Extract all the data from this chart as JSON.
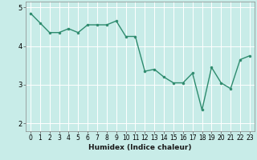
{
  "title": "",
  "xlabel": "Humidex (Indice chaleur)",
  "x_values": [
    0,
    1,
    2,
    3,
    4,
    5,
    6,
    7,
    8,
    9,
    10,
    11,
    12,
    13,
    14,
    15,
    16,
    17,
    18,
    19,
    20,
    21,
    22,
    23
  ],
  "y_values": [
    4.85,
    4.6,
    4.35,
    4.35,
    4.45,
    4.35,
    4.55,
    4.55,
    4.55,
    4.65,
    4.25,
    4.25,
    3.35,
    3.4,
    3.2,
    3.05,
    3.05,
    3.3,
    2.35,
    3.45,
    3.05,
    2.9,
    3.65,
    3.75
  ],
  "line_color": "#2e8b6e",
  "marker_color": "#2e8b6e",
  "bg_color": "#c8ece8",
  "grid_color": "#ffffff",
  "ylim": [
    1.8,
    5.15
  ],
  "xlim": [
    -0.5,
    23.5
  ],
  "yticks": [
    2,
    3,
    4,
    5
  ],
  "xticks": [
    0,
    1,
    2,
    3,
    4,
    5,
    6,
    7,
    8,
    9,
    10,
    11,
    12,
    13,
    14,
    15,
    16,
    17,
    18,
    19,
    20,
    21,
    22,
    23
  ]
}
